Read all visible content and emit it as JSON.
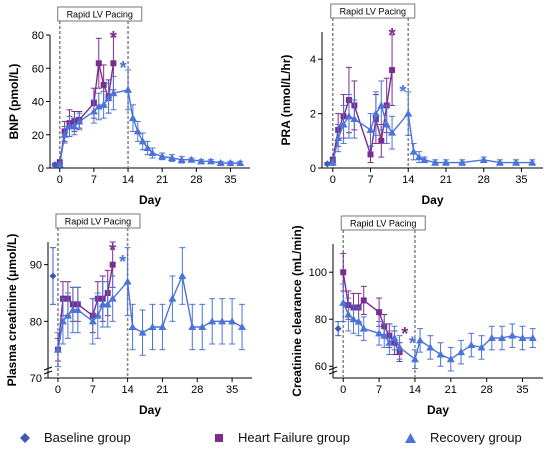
{
  "colors": {
    "baseline": "#3b5bb5",
    "heart_failure": "#7b2d8e",
    "recovery": "#4b73d9",
    "pacing_line": "#8a8a8a"
  },
  "legend": {
    "baseline": "Baseline group",
    "heart_failure": "Heart Failure group",
    "recovery": "Recovery group"
  },
  "chart_data": [
    {
      "type": "line",
      "panel": "top-left",
      "ylabel": "BNP (pmol/L)",
      "xlabel": "Day",
      "annotation": "Rapid LV Pacing",
      "xlim": [
        -2,
        39
      ],
      "ylim": [
        0,
        80
      ],
      "xticks": [
        0,
        7,
        14,
        21,
        28,
        35
      ],
      "yticks": [
        0,
        20,
        40,
        60,
        80
      ],
      "pacing_lines": [
        0,
        14
      ],
      "series": [
        {
          "name": "Baseline group",
          "color_key": "baseline",
          "marker": "diamond",
          "points": [
            [
              -1,
              2,
              1
            ]
          ]
        },
        {
          "name": "Heart Failure group",
          "color_key": "heart_failure",
          "marker": "square",
          "points": [
            [
              0,
              3,
              2
            ],
            [
              1,
              22,
              6
            ],
            [
              2,
              27,
              8
            ],
            [
              3,
              28,
              6
            ],
            [
              4,
              29,
              5
            ],
            [
              7,
              39,
              9
            ],
            [
              8,
              63,
              15
            ],
            [
              9,
              50,
              12
            ],
            [
              10,
              43,
              10
            ],
            [
              11,
              63,
              16
            ]
          ]
        },
        {
          "name": "Recovery group",
          "color_key": "recovery",
          "marker": "triangle",
          "points": [
            [
              0,
              2,
              1
            ],
            [
              1,
              20,
              5
            ],
            [
              2,
              25,
              6
            ],
            [
              3,
              25,
              5
            ],
            [
              4,
              28,
              5
            ],
            [
              7,
              34,
              7
            ],
            [
              8,
              37,
              8
            ],
            [
              9,
              38,
              8
            ],
            [
              10,
              42,
              9
            ],
            [
              11,
              45,
              10
            ],
            [
              14,
              47,
              12
            ],
            [
              15,
              30,
              8
            ],
            [
              16,
              22,
              6
            ],
            [
              17,
              16,
              5
            ],
            [
              18,
              12,
              4
            ],
            [
              19,
              9,
              3
            ],
            [
              21,
              7,
              2
            ],
            [
              23,
              6,
              2
            ],
            [
              25,
              5,
              2
            ],
            [
              27,
              5,
              1
            ],
            [
              29,
              4,
              1
            ],
            [
              31,
              4,
              1
            ],
            [
              33,
              3,
              1
            ],
            [
              35,
              3,
              1
            ],
            [
              37,
              3,
              1
            ]
          ]
        }
      ],
      "stars": [
        {
          "x": 11,
          "y": 80,
          "color_key": "heart_failure",
          "text": "*"
        },
        {
          "x": 13,
          "y": 62,
          "color_key": "recovery",
          "text": "*"
        }
      ]
    },
    {
      "type": "line",
      "panel": "top-right",
      "ylabel": "PRA (nmol/L/hr)",
      "xlabel": "Day",
      "annotation": "Rapid LV Pacing",
      "xlim": [
        -2,
        39
      ],
      "ylim": [
        0,
        5
      ],
      "xticks": [
        0,
        7,
        14,
        21,
        28,
        35
      ],
      "yticks": [
        0,
        2,
        4
      ],
      "pacing_lines": [
        0,
        14
      ],
      "series": [
        {
          "name": "Baseline group",
          "color_key": "baseline",
          "marker": "diamond",
          "points": [
            [
              -1,
              0.15,
              0.05
            ]
          ]
        },
        {
          "name": "Heart Failure group",
          "color_key": "heart_failure",
          "marker": "square",
          "points": [
            [
              0,
              0.3,
              0.1
            ],
            [
              1,
              1.4,
              0.6
            ],
            [
              2,
              1.9,
              0.8
            ],
            [
              3,
              2.5,
              1.2
            ],
            [
              4,
              2.3,
              0.9
            ],
            [
              7,
              0.5,
              0.3
            ],
            [
              8,
              1.8,
              0.9
            ],
            [
              9,
              1.0,
              0.6
            ],
            [
              10,
              2.3,
              1.0
            ],
            [
              11,
              3.6,
              1.3
            ]
          ]
        },
        {
          "name": "Recovery group",
          "color_key": "recovery",
          "marker": "triangle",
          "points": [
            [
              0,
              0.2,
              0.1
            ],
            [
              1,
              1.1,
              0.5
            ],
            [
              2,
              1.6,
              0.7
            ],
            [
              3,
              1.9,
              0.8
            ],
            [
              4,
              1.8,
              0.7
            ],
            [
              7,
              1.4,
              0.6
            ],
            [
              8,
              2.0,
              0.8
            ],
            [
              9,
              2.3,
              0.9
            ],
            [
              10,
              1.6,
              0.7
            ],
            [
              11,
              1.3,
              0.6
            ],
            [
              14,
              2.0,
              0.8
            ],
            [
              15,
              0.6,
              0.3
            ],
            [
              16,
              0.4,
              0.2
            ],
            [
              17,
              0.3,
              0.1
            ],
            [
              19,
              0.2,
              0.1
            ],
            [
              21,
              0.2,
              0.1
            ],
            [
              24,
              0.2,
              0.1
            ],
            [
              28,
              0.3,
              0.1
            ],
            [
              31,
              0.2,
              0.1
            ],
            [
              34,
              0.2,
              0.1
            ],
            [
              37,
              0.2,
              0.1
            ]
          ]
        }
      ],
      "stars": [
        {
          "x": 11,
          "y": 5.0,
          "color_key": "heart_failure",
          "text": "*"
        },
        {
          "x": 13,
          "y": 2.9,
          "color_key": "recovery",
          "text": "*"
        }
      ]
    },
    {
      "type": "line",
      "panel": "bottom-left",
      "ylabel": "Plasma creatinine (μmol/L)",
      "xlabel": "Day",
      "annotation": "Rapid LV Pacing",
      "xlim": [
        -2,
        39
      ],
      "ylim": [
        70,
        94
      ],
      "axis_break": true,
      "xticks": [
        0,
        7,
        14,
        21,
        28,
        35
      ],
      "yticks": [
        70,
        80,
        90
      ],
      "pacing_lines": [
        0,
        14
      ],
      "series": [
        {
          "name": "Baseline group",
          "color_key": "baseline",
          "marker": "diamond",
          "points": [
            [
              -1,
              88,
              5
            ]
          ]
        },
        {
          "name": "Heart Failure group",
          "color_key": "heart_failure",
          "marker": "square",
          "points": [
            [
              0,
              75,
              2
            ],
            [
              1,
              84,
              3
            ],
            [
              2,
              84,
              3
            ],
            [
              3,
              83,
              3
            ],
            [
              4,
              83,
              3
            ],
            [
              7,
              81,
              3
            ],
            [
              8,
              84,
              3
            ],
            [
              9,
              84,
              4
            ],
            [
              10,
              85,
              4
            ],
            [
              11,
              90,
              4
            ]
          ]
        },
        {
          "name": "Recovery group",
          "color_key": "recovery",
          "marker": "triangle",
          "points": [
            [
              0,
              75,
              3
            ],
            [
              1,
              80,
              4
            ],
            [
              2,
              81,
              4
            ],
            [
              3,
              82,
              4
            ],
            [
              4,
              82,
              4
            ],
            [
              7,
              80,
              4
            ],
            [
              8,
              81,
              4
            ],
            [
              9,
              83,
              4
            ],
            [
              10,
              83,
              4
            ],
            [
              11,
              84,
              4
            ],
            [
              14,
              87,
              6
            ],
            [
              15,
              79,
              4
            ],
            [
              17,
              78,
              4
            ],
            [
              19,
              79,
              4
            ],
            [
              21,
              79,
              4
            ],
            [
              23,
              84,
              4
            ],
            [
              25,
              88,
              5
            ],
            [
              27,
              79,
              4
            ],
            [
              29,
              79,
              4
            ],
            [
              31,
              80,
              4
            ],
            [
              33,
              80,
              4
            ],
            [
              35,
              80,
              4
            ],
            [
              37,
              79,
              4
            ]
          ]
        }
      ],
      "stars": [
        {
          "x": 11,
          "y": 93,
          "color_key": "heart_failure",
          "text": "*"
        },
        {
          "x": 13,
          "y": 91,
          "color_key": "recovery",
          "text": "*"
        }
      ]
    },
    {
      "type": "line",
      "panel": "bottom-right",
      "ylabel": "Creatinine clearance (mL/min)",
      "xlabel": "Day",
      "annotation": "Rapid LV Pacing",
      "xlim": [
        -2,
        39
      ],
      "ylim": [
        55,
        112
      ],
      "axis_break": true,
      "xticks": [
        0,
        7,
        14,
        21,
        28,
        35
      ],
      "yticks": [
        60,
        80,
        100
      ],
      "pacing_lines": [
        0,
        14
      ],
      "series": [
        {
          "name": "Baseline group",
          "color_key": "baseline",
          "marker": "diamond",
          "points": [
            [
              -1,
              76,
              3
            ]
          ]
        },
        {
          "name": "Heart Failure group",
          "color_key": "heart_failure",
          "marker": "square",
          "points": [
            [
              0,
              100,
              8
            ],
            [
              1,
              86,
              6
            ],
            [
              2,
              85,
              6
            ],
            [
              3,
              85,
              6
            ],
            [
              4,
              88,
              6
            ],
            [
              7,
              83,
              6
            ],
            [
              8,
              77,
              5
            ],
            [
              9,
              73,
              5
            ],
            [
              10,
              70,
              5
            ],
            [
              11,
              66,
              4
            ]
          ]
        },
        {
          "name": "Recovery group",
          "color_key": "recovery",
          "marker": "triangle",
          "points": [
            [
              0,
              87,
              8
            ],
            [
              1,
              82,
              7
            ],
            [
              2,
              80,
              6
            ],
            [
              3,
              79,
              6
            ],
            [
              4,
              76,
              5
            ],
            [
              7,
              74,
              5
            ],
            [
              8,
              73,
              5
            ],
            [
              9,
              70,
              5
            ],
            [
              10,
              72,
              5
            ],
            [
              11,
              68,
              5
            ],
            [
              14,
              63,
              4
            ],
            [
              15,
              71,
              5
            ],
            [
              17,
              68,
              5
            ],
            [
              19,
              65,
              5
            ],
            [
              21,
              63,
              5
            ],
            [
              23,
              66,
              5
            ],
            [
              25,
              69,
              5
            ],
            [
              27,
              68,
              5
            ],
            [
              29,
              72,
              5
            ],
            [
              31,
              72,
              5
            ],
            [
              33,
              73,
              5
            ],
            [
              35,
              72,
              5
            ],
            [
              37,
              72,
              4
            ]
          ]
        }
      ],
      "stars": [
        {
          "x": 12,
          "y": 75,
          "color_key": "heart_failure",
          "text": "*"
        },
        {
          "x": 13.5,
          "y": 71,
          "color_key": "recovery",
          "text": "*"
        }
      ]
    }
  ]
}
